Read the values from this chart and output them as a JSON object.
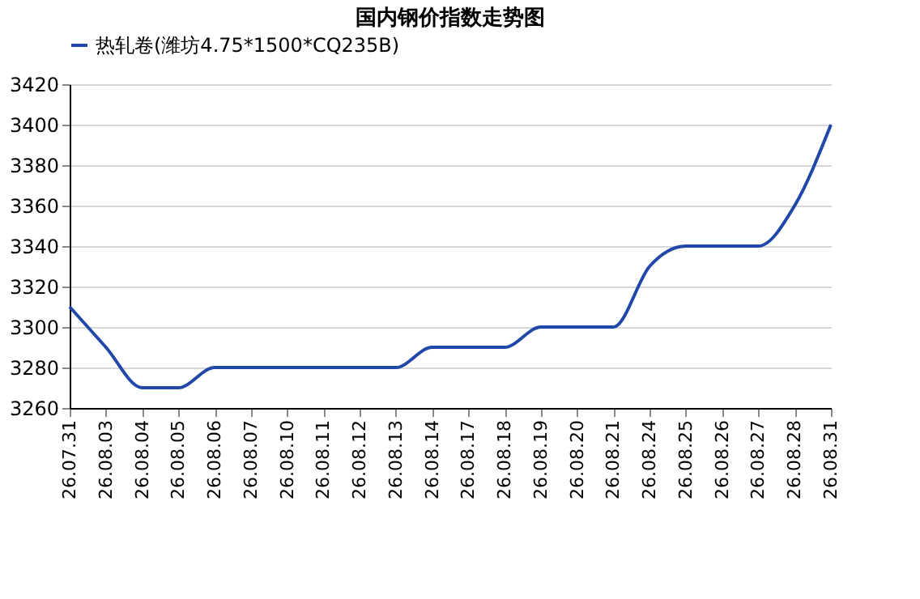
{
  "chart_data": {
    "type": "line",
    "title": "国内钢价指数走势图",
    "categories": [
      "26.07.31",
      "26.08.03",
      "26.08.04",
      "26.08.05",
      "26.08.06",
      "26.08.07",
      "26.08.10",
      "26.08.11",
      "26.08.12",
      "26.08.13",
      "26.08.14",
      "26.08.17",
      "26.08.18",
      "26.08.19",
      "26.08.20",
      "26.08.21",
      "26.08.24",
      "26.08.25",
      "26.08.26",
      "26.08.27",
      "26.08.28",
      "26.08.31"
    ],
    "series": [
      {
        "name": "热轧卷(潍坊4.75*1500*CQ235B)",
        "color": "#1f48a8",
        "values": [
          3310,
          3290,
          3270,
          3270,
          3280,
          3280,
          3280,
          3280,
          3280,
          3280,
          3290,
          3290,
          3290,
          3300,
          3300,
          3300,
          3330,
          3340,
          3340,
          3340,
          3360,
          3400
        ]
      }
    ],
    "ylim": [
      3260,
      3420
    ],
    "yticks": [
      3260,
      3280,
      3300,
      3320,
      3340,
      3360,
      3380,
      3400,
      3420
    ],
    "grid": "y",
    "legend": "top",
    "marker": "none",
    "line_style": "solid"
  }
}
